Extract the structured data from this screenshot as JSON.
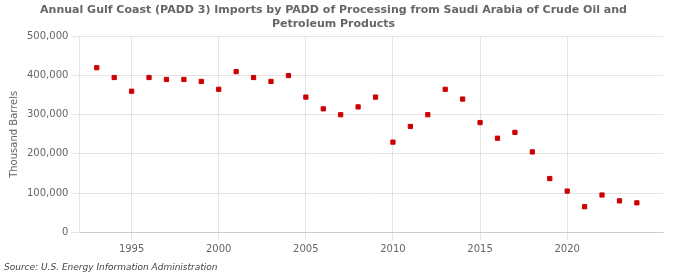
{
  "chart_data": {
    "type": "scatter",
    "title": "Annual Gulf Coast (PADD 3) Imports by PADD of Processing from Saudi Arabia of Crude Oil and\nPetroleum Products",
    "ylabel": "Thousand Barrels",
    "annotation": "Source: U.S. Energy Information Administration",
    "x": [
      1993,
      1994,
      1995,
      1996,
      1997,
      1998,
      1999,
      2000,
      2001,
      2002,
      2003,
      2004,
      2005,
      2006,
      2007,
      2008,
      2009,
      2010,
      2011,
      2012,
      2013,
      2014,
      2015,
      2016,
      2017,
      2018,
      2019,
      2020,
      2021,
      2022,
      2023,
      2024
    ],
    "values": [
      420000,
      395000,
      360000,
      395000,
      390000,
      390000,
      385000,
      365000,
      410000,
      395000,
      385000,
      400000,
      345000,
      315000,
      300000,
      320000,
      345000,
      230000,
      270000,
      300000,
      365000,
      340000,
      280000,
      240000,
      255000,
      205000,
      137000,
      105000,
      65000,
      95000,
      80000,
      75000
    ],
    "color": "#cc0000",
    "marker": "square",
    "xlim": [
      1992.0,
      2025.5
    ],
    "xticks": [
      1995,
      2000,
      2005,
      2010,
      2015,
      2020
    ],
    "ylim": [
      0,
      500000
    ],
    "yticks": [
      0,
      {
        "value": 100000,
        "label": "100,000"
      },
      {
        "value": 200000,
        "label": "200,000"
      },
      {
        "value": 300000,
        "label": "300,000"
      },
      {
        "value": 400000,
        "label": "400,000"
      },
      {
        "value": 500000,
        "label": "500,000"
      }
    ],
    "grid": true
  }
}
